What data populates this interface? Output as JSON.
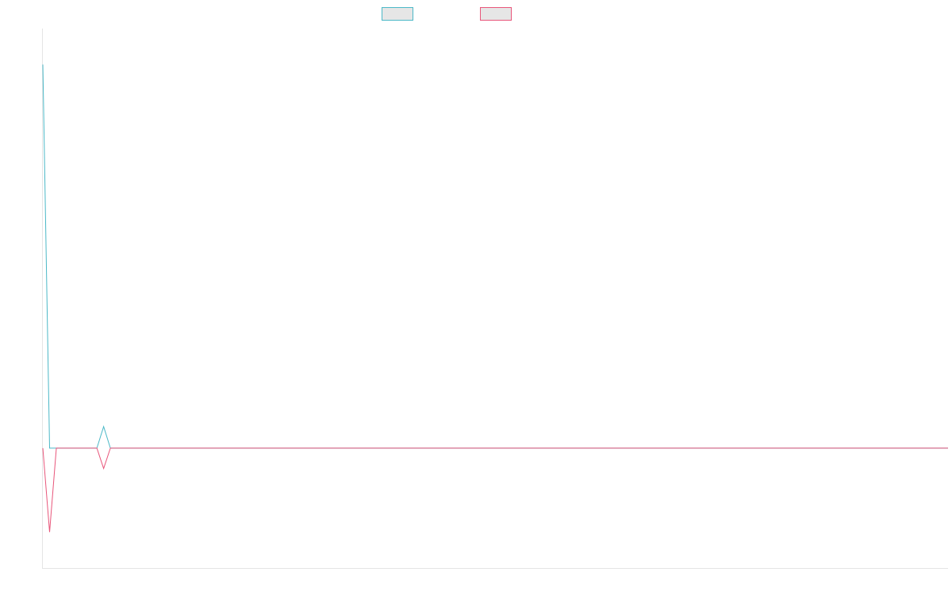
{
  "chart_data": {
    "type": "line",
    "title": "",
    "xlabel": "",
    "ylabel": "",
    "grid": false,
    "legend_position": "top-center",
    "ylim": [
      -1,
      3.5
    ],
    "series": [
      {
        "color": "#4bb8c7",
        "values": [
          3.2,
          0,
          0,
          0,
          0,
          0,
          0,
          0,
          0,
          0.18,
          0,
          0,
          0,
          0,
          0,
          0,
          0,
          0,
          0,
          0,
          0,
          0,
          0,
          0,
          0,
          0,
          0,
          0,
          0,
          0,
          0,
          0,
          0,
          0,
          0,
          0,
          0,
          0,
          0,
          0,
          0,
          0,
          0,
          0,
          0,
          0,
          0,
          0,
          0,
          0,
          0,
          0,
          0,
          0,
          0,
          0,
          0,
          0,
          0,
          0,
          0,
          0,
          0,
          0,
          0,
          0,
          0,
          0,
          0,
          0,
          0,
          0,
          0,
          0,
          0,
          0,
          0,
          0,
          0,
          0,
          0,
          0,
          0,
          0,
          0,
          0,
          0,
          0,
          0,
          0,
          0,
          0,
          0,
          0,
          0,
          0,
          0,
          0,
          0,
          0,
          0,
          0,
          0,
          0,
          0,
          0,
          0,
          0,
          0,
          0,
          0,
          0,
          0,
          0,
          0,
          0,
          0,
          0,
          0,
          0,
          0,
          0,
          0,
          0,
          0,
          0,
          0,
          0,
          0,
          0,
          0,
          0,
          0,
          0,
          0
        ]
      },
      {
        "color": "#e8557a",
        "values": [
          0,
          -0.7,
          0,
          0,
          0,
          0,
          0,
          0,
          0,
          -0.17,
          0,
          0,
          0,
          0,
          0,
          0,
          0,
          0,
          0,
          0,
          0,
          0,
          0,
          0,
          0,
          0,
          0,
          0,
          0,
          0,
          0,
          0,
          0,
          0,
          0,
          0,
          0,
          0,
          0,
          0,
          0,
          0,
          0,
          0,
          0,
          0,
          0,
          0,
          0,
          0,
          0,
          0,
          0,
          0,
          0,
          0,
          0,
          0,
          0,
          0,
          0,
          0,
          0,
          0,
          0,
          0,
          0,
          0,
          0,
          0,
          0,
          0,
          0,
          0,
          0,
          0,
          0,
          0,
          0,
          0,
          0,
          0,
          0,
          0,
          0,
          0,
          0,
          0,
          0,
          0,
          0,
          0,
          0,
          0,
          0,
          0,
          0,
          0,
          0,
          0,
          0,
          0,
          0,
          0,
          0,
          0,
          0,
          0,
          0,
          0,
          0,
          0,
          0,
          0,
          0,
          0,
          0,
          0,
          0,
          0,
          0,
          0,
          0,
          0,
          0,
          0,
          0,
          0,
          0,
          0,
          0,
          0,
          0,
          0,
          0
        ]
      }
    ]
  }
}
